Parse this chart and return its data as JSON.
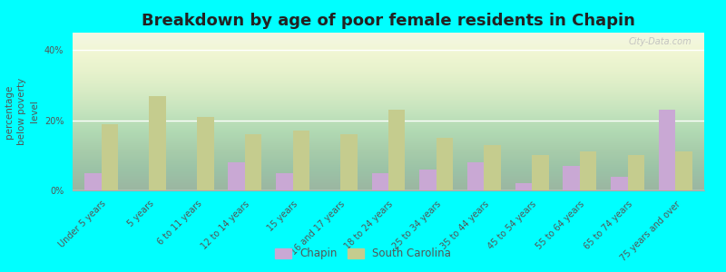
{
  "title": "Breakdown by age of poor female residents in Chapin",
  "categories": [
    "Under 5 years",
    "5 years",
    "6 to 11 years",
    "12 to 14 years",
    "15 years",
    "16 and 17 years",
    "18 to 24 years",
    "25 to 34 years",
    "35 to 44 years",
    "45 to 54 years",
    "55 to 64 years",
    "65 to 74 years",
    "75 years and over"
  ],
  "chapin_values": [
    5,
    0,
    0,
    8,
    5,
    0,
    5,
    6,
    8,
    2,
    7,
    4,
    23
  ],
  "sc_values": [
    19,
    27,
    21,
    16,
    17,
    16,
    23,
    15,
    13,
    10,
    11,
    10,
    11
  ],
  "chapin_color": "#c9a8d4",
  "sc_color": "#c5cc8e",
  "outer_bg": "#00ffff",
  "plot_bg_color": "#eef3e2",
  "ylabel": "percentage\nbelow poverty\nlevel",
  "ylim": [
    0,
    45
  ],
  "yticks": [
    0,
    20,
    40
  ],
  "ytick_labels": [
    "0%",
    "20%",
    "40%"
  ],
  "bar_width": 0.35,
  "title_fontsize": 13,
  "axis_label_fontsize": 7.5,
  "tick_fontsize": 7,
  "legend_labels": [
    "Chapin",
    "South Carolina"
  ],
  "watermark": "City-Data.com"
}
